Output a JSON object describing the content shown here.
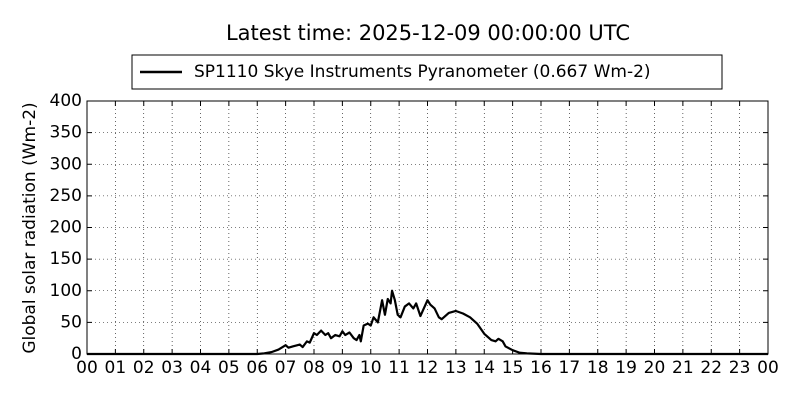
{
  "chart_data": {
    "type": "line",
    "title": "Latest time: 2025-12-09 00:00:00 UTC",
    "y_label": "Global solar radiation (Wm-2)",
    "x": [
      0,
      6.0,
      6.25,
      6.5,
      6.75,
      7.0,
      7.1,
      7.25,
      7.5,
      7.6,
      7.75,
      7.85,
      8.0,
      8.1,
      8.25,
      8.4,
      8.5,
      8.6,
      8.75,
      8.9,
      9.0,
      9.1,
      9.25,
      9.4,
      9.5,
      9.6,
      9.65,
      9.75,
      9.9,
      10.0,
      10.1,
      10.25,
      10.4,
      10.5,
      10.6,
      10.7,
      10.75,
      10.85,
      10.95,
      11.05,
      11.2,
      11.35,
      11.5,
      11.6,
      11.75,
      11.85,
      12.0,
      12.1,
      12.25,
      12.4,
      12.5,
      12.75,
      13.0,
      13.25,
      13.5,
      13.75,
      14.0,
      14.25,
      14.4,
      14.5,
      14.65,
      14.75,
      15.0,
      15.25,
      15.5,
      16.0,
      24.0
    ],
    "series": [
      {
        "name": "SP1110 Skye Instruments Pyranometer (0.667 Wm-2)",
        "color": "#000000",
        "values": [
          0,
          0,
          1,
          3,
          7,
          14,
          10,
          12,
          15,
          11,
          20,
          18,
          33,
          30,
          37,
          30,
          33,
          25,
          30,
          28,
          36,
          30,
          34,
          25,
          22,
          30,
          20,
          45,
          48,
          45,
          58,
          50,
          85,
          62,
          87,
          80,
          100,
          85,
          62,
          58,
          75,
          80,
          72,
          80,
          60,
          70,
          85,
          78,
          72,
          58,
          55,
          65,
          68,
          64,
          58,
          48,
          32,
          22,
          20,
          24,
          20,
          12,
          6,
          2,
          1,
          0,
          0
        ]
      }
    ],
    "xlim": [
      0,
      24
    ],
    "ylim": [
      0,
      400
    ],
    "xticks": [
      {
        "value": 0,
        "label": "00"
      },
      {
        "value": 1,
        "label": "01"
      },
      {
        "value": 2,
        "label": "02"
      },
      {
        "value": 3,
        "label": "03"
      },
      {
        "value": 4,
        "label": "04"
      },
      {
        "value": 5,
        "label": "05"
      },
      {
        "value": 6,
        "label": "06"
      },
      {
        "value": 7,
        "label": "07"
      },
      {
        "value": 8,
        "label": "08"
      },
      {
        "value": 9,
        "label": "09"
      },
      10,
      11,
      12,
      13,
      14,
      15,
      16,
      17,
      18,
      19,
      20,
      21,
      22,
      23,
      {
        "value": 24,
        "label": "00"
      }
    ],
    "yticks": [
      0,
      50,
      100,
      150,
      200,
      250,
      300,
      350,
      400
    ],
    "grid": true,
    "legend": "top"
  }
}
